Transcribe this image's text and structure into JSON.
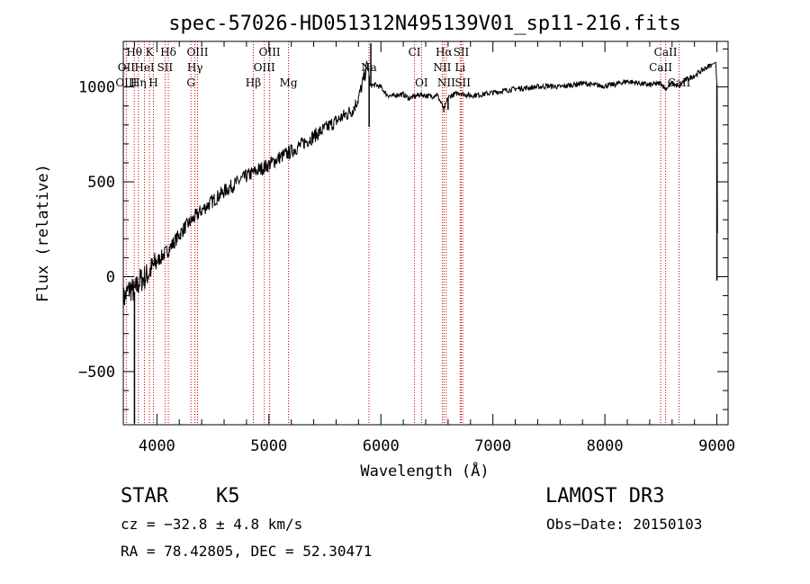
{
  "chart_data": {
    "type": "line",
    "title": "spec-57026-HD051312N495139V01_sp11-216.fits",
    "xlabel": "Wavelength (Å)",
    "ylabel": "Flux (relative)",
    "xlim": [
      3700,
      9100
    ],
    "ylim": [
      -780,
      1240
    ],
    "x_ticks": [
      4000,
      5000,
      6000,
      7000,
      8000,
      9000
    ],
    "x_tick_labels": [
      "4000",
      "5000",
      "6000",
      "7000",
      "8000",
      "9000"
    ],
    "y_ticks": [
      -500,
      0,
      500,
      1000
    ],
    "y_tick_labels": [
      "−500",
      "0",
      "500",
      "1000"
    ],
    "series": [
      {
        "name": "flux",
        "x": [
          3700,
          3760,
          3800,
          3850,
          3900,
          3950,
          4000,
          4050,
          4100,
          4150,
          4200,
          4250,
          4300,
          4350,
          4400,
          4500,
          4600,
          4700,
          4800,
          4900,
          5000,
          5100,
          5200,
          5300,
          5400,
          5500,
          5600,
          5700,
          5750,
          5800,
          5850,
          5880,
          5895,
          5900,
          5910,
          5950,
          6000,
          6050,
          6100,
          6150,
          6200,
          6250,
          6300,
          6350,
          6400,
          6450,
          6500,
          6550,
          6562,
          6580,
          6600,
          6650,
          6700,
          6750,
          6800,
          6900,
          7000,
          7100,
          7200,
          7300,
          7400,
          7500,
          7600,
          7700,
          7800,
          7900,
          8000,
          8100,
          8200,
          8300,
          8400,
          8500,
          8542,
          8600,
          8662,
          8700,
          8800,
          8900,
          8990,
          9000,
          9005
        ],
        "y": [
          -120,
          -60,
          -80,
          -20,
          0,
          40,
          80,
          110,
          140,
          180,
          220,
          260,
          290,
          320,
          350,
          400,
          450,
          490,
          530,
          560,
          590,
          630,
          660,
          700,
          740,
          780,
          820,
          860,
          880,
          940,
          1050,
          1120,
          1060,
          1000,
          1010,
          1010,
          1000,
          960,
          950,
          960,
          960,
          940,
          950,
          960,
          955,
          950,
          960,
          900,
          880,
          910,
          945,
          960,
          970,
          960,
          955,
          960,
          970,
          980,
          990,
          995,
          1000,
          1005,
          1000,
          1010,
          1020,
          1010,
          1005,
          1015,
          1030,
          1020,
          1010,
          1020,
          990,
          1020,
          1000,
          1030,
          1060,
          1100,
          1130,
          1010,
          230
        ],
        "spikes": [
          {
            "x": 3800,
            "y": -770
          },
          {
            "x": 5895,
            "y": 790
          },
          {
            "x": 5910,
            "y": 1230
          },
          {
            "x": 6562,
            "y": 870
          },
          {
            "x": 6600,
            "y": 880
          },
          {
            "x": 9000,
            "y": -20
          }
        ]
      }
    ],
    "line_labels": [
      {
        "label": "Hθ",
        "x": 3798,
        "row": 0
      },
      {
        "label": "K",
        "x": 3934,
        "row": 0
      },
      {
        "label": "Hδ",
        "x": 4102,
        "row": 0
      },
      {
        "label": "OIII",
        "x": 4363,
        "row": 0
      },
      {
        "label": "OIII",
        "x": 5007,
        "row": 0
      },
      {
        "label": "CI",
        "x": 6300,
        "row": 0
      },
      {
        "label": "Hα",
        "x": 6563,
        "row": 0
      },
      {
        "label": "SII",
        "x": 6717,
        "row": 0
      },
      {
        "label": "CaII",
        "x": 8542,
        "row": 0
      },
      {
        "label": "OII",
        "x": 3727,
        "row": 1
      },
      {
        "label": "HeI",
        "x": 3889,
        "row": 1
      },
      {
        "label": "SII",
        "x": 4072,
        "row": 1
      },
      {
        "label": "Hγ",
        "x": 4340,
        "row": 1
      },
      {
        "label": "OIII",
        "x": 4959,
        "row": 1
      },
      {
        "label": "NII",
        "x": 6548,
        "row": 1
      },
      {
        "label": "Li",
        "x": 6708,
        "row": 1
      },
      {
        "label": "CaII",
        "x": 8498,
        "row": 1
      },
      {
        "label": "Na",
        "x": 5893,
        "row": 1
      },
      {
        "label": "OIII",
        "x": 3727,
        "row": 2
      },
      {
        "label": "Hη",
        "x": 3835,
        "row": 2
      },
      {
        "label": "H",
        "x": 3969,
        "row": 2
      },
      {
        "label": "G",
        "x": 4304,
        "row": 2
      },
      {
        "label": "Hβ",
        "x": 4861,
        "row": 2
      },
      {
        "label": "Mg",
        "x": 5175,
        "row": 2
      },
      {
        "label": "OI",
        "x": 6363,
        "row": 2
      },
      {
        "label": "NII",
        "x": 6584,
        "row": 2
      },
      {
        "label": "SII",
        "x": 6731,
        "row": 2
      },
      {
        "label": "CaII",
        "x": 8662,
        "row": 2
      }
    ],
    "line_markers": [
      3727,
      3798,
      3835,
      3889,
      3934,
      3969,
      4072,
      4102,
      4304,
      4340,
      4363,
      4861,
      4959,
      5007,
      5175,
      5893,
      6300,
      6363,
      6548,
      6563,
      6584,
      6708,
      6717,
      6731,
      8498,
      8542,
      8662
    ],
    "marker_color": "#cc0000",
    "line_color": "#000000"
  },
  "info": {
    "object_type": "STAR",
    "subclass": "K5",
    "survey": "LAMOST DR3",
    "cz": "cz = −32.8 ± 4.8 km/s",
    "obs_date": "Obs−Date: 20150103",
    "coords": "RA =  78.42805, DEC =  52.30471"
  }
}
